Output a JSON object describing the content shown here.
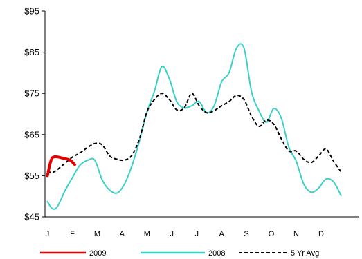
{
  "chart_data": {
    "type": "line",
    "title": "",
    "xlabel": "",
    "ylabel": "",
    "ylim": [
      45,
      95
    ],
    "yticks": [
      45,
      55,
      65,
      75,
      85,
      95
    ],
    "ytick_labels": [
      "$45",
      "$55",
      "$65",
      "$75",
      "$85",
      "$95"
    ],
    "categories": [
      "J",
      "F",
      "M",
      "A",
      "M",
      "J",
      "J",
      "A",
      "S",
      "O",
      "N",
      "D"
    ],
    "grid": false,
    "legend_position": "bottom",
    "series": [
      {
        "name": "2009",
        "color": "#e60000",
        "style": "solid",
        "x": [
          0.0,
          0.15,
          0.3,
          0.6,
          0.9,
          1.1
        ],
        "y": [
          55.0,
          58.8,
          59.6,
          59.3,
          58.8,
          57.7
        ]
      },
      {
        "name": "2008",
        "color": "#3ccfc8",
        "style": "solid",
        "x": [
          0.0,
          0.2,
          0.4,
          0.7,
          1.0,
          1.3,
          1.6,
          1.9,
          2.2,
          2.5,
          2.8,
          3.1,
          3.4,
          3.7,
          4.0,
          4.3,
          4.6,
          4.9,
          5.2,
          5.5,
          5.8,
          6.1,
          6.4,
          6.7,
          7.0,
          7.3,
          7.6,
          7.9,
          8.2,
          8.5,
          8.8,
          9.1,
          9.4,
          9.7,
          10.0,
          10.3,
          10.6,
          10.9,
          11.2,
          11.5,
          11.8
        ],
        "y": [
          48.7,
          47.0,
          47.5,
          51.3,
          54.5,
          57.5,
          58.7,
          58.8,
          54.0,
          51.5,
          50.8,
          53.0,
          57.5,
          63.5,
          70.5,
          75.5,
          81.5,
          78.5,
          73.0,
          71.5,
          72.0,
          73.0,
          70.3,
          72.0,
          77.8,
          80.0,
          86.0,
          86.0,
          75.5,
          70.8,
          68.0,
          71.3,
          69.0,
          62.0,
          58.5,
          53.0,
          51.0,
          52.0,
          54.2,
          53.5,
          50.2
        ]
      },
      {
        "name": "5 Yr Avg",
        "color": "#000000",
        "style": "dashed",
        "x": [
          0.0,
          0.2,
          0.4,
          0.7,
          1.0,
          1.3,
          1.6,
          1.9,
          2.2,
          2.5,
          2.8,
          3.1,
          3.4,
          3.7,
          4.0,
          4.3,
          4.6,
          4.9,
          5.2,
          5.5,
          5.8,
          6.1,
          6.4,
          6.7,
          7.0,
          7.3,
          7.6,
          7.9,
          8.2,
          8.5,
          8.8,
          9.1,
          9.4,
          9.7,
          10.0,
          10.3,
          10.6,
          10.9,
          11.2,
          11.5,
          11.8
        ],
        "y": [
          56.0,
          55.8,
          56.5,
          58.0,
          59.5,
          60.5,
          61.8,
          62.8,
          62.5,
          59.8,
          59.0,
          58.8,
          60.0,
          64.0,
          70.5,
          73.5,
          75.0,
          73.5,
          71.0,
          71.5,
          75.0,
          72.0,
          70.3,
          70.8,
          72.0,
          73.0,
          74.5,
          73.5,
          69.5,
          67.0,
          68.5,
          67.5,
          64.0,
          61.0,
          61.0,
          59.0,
          58.2,
          59.8,
          61.5,
          58.5,
          56.0
        ]
      }
    ]
  }
}
